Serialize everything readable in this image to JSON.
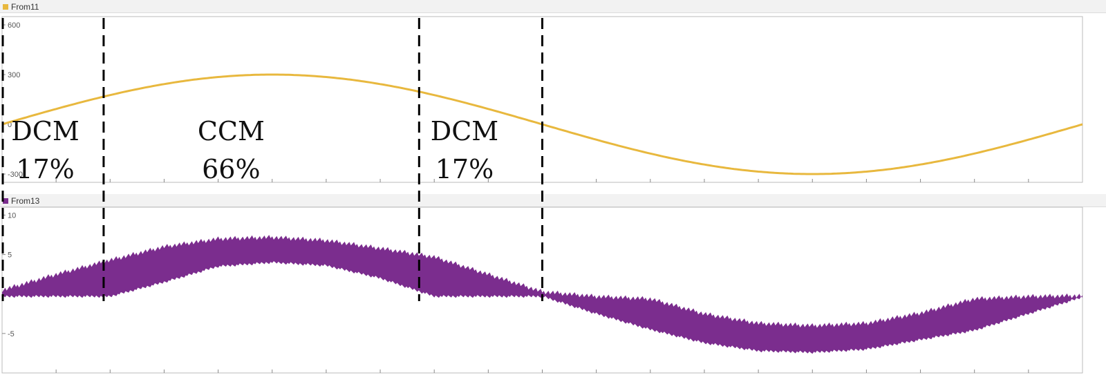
{
  "panels": [
    {
      "name": "From11",
      "color": "#e8b83e"
    },
    {
      "name": "From13",
      "color": "#7b2d8e"
    }
  ],
  "chart_data": [
    {
      "type": "line",
      "series_name": "From11",
      "title": "",
      "xlabel": "",
      "ylabel": "",
      "ylim": [
        -350,
        650
      ],
      "yticks": [
        600,
        300,
        0,
        -300
      ],
      "ytick_labels": [
        "600",
        "300",
        "0",
        "-300"
      ],
      "x": [
        0,
        0.05,
        0.1,
        0.15,
        0.2,
        0.25,
        0.3,
        0.35,
        0.4,
        0.45,
        0.5,
        0.55,
        0.6,
        0.65,
        0.7,
        0.75,
        0.8,
        0.85,
        0.9,
        0.95,
        1.0
      ],
      "values": [
        0,
        93,
        176,
        243,
        285,
        300,
        285,
        243,
        176,
        93,
        0,
        -93,
        -176,
        -243,
        -285,
        -300,
        -285,
        -243,
        -176,
        -93,
        0
      ],
      "color": "#e8b83e"
    },
    {
      "type": "area",
      "series_name": "From13",
      "title": "",
      "xlabel": "",
      "ylabel": "",
      "ylim": [
        -10,
        11
      ],
      "yticks": [
        10,
        5,
        -5
      ],
      "ytick_labels": [
        "10",
        "5",
        "-5"
      ],
      "x": [
        0,
        0.05,
        0.1,
        0.15,
        0.2,
        0.25,
        0.3,
        0.35,
        0.4,
        0.45,
        0.5,
        0.55,
        0.6,
        0.65,
        0.7,
        0.75,
        0.8,
        0.85,
        0.9,
        0.95,
        1.0
      ],
      "upper": [
        0.5,
        2.5,
        4.3,
        6.0,
        7.0,
        7.2,
        6.8,
        5.8,
        4.7,
        2.5,
        0.3,
        -0.3,
        -0.6,
        -2.5,
        -3.7,
        -4.0,
        -3.7,
        -2.4,
        -0.6,
        -0.3,
        -0.2
      ],
      "lower": [
        -0.3,
        -0.3,
        -0.3,
        1.5,
        3.5,
        4.0,
        3.6,
        2.0,
        -0.3,
        -0.3,
        -0.3,
        -2.5,
        -4.5,
        -6.2,
        -7.2,
        -7.4,
        -7.0,
        -5.8,
        -4.6,
        -2.5,
        -0.4
      ],
      "color": "#7b2d8e"
    }
  ],
  "boundaries": [
    0,
    0.094,
    0.386,
    0.5
  ],
  "regions": [
    {
      "mode": "DCM",
      "percent": "17%",
      "center": 0.04
    },
    {
      "mode": "CCM",
      "percent": "66%",
      "center": 0.212
    },
    {
      "mode": "DCM",
      "percent": "17%",
      "center": 0.428
    }
  ]
}
